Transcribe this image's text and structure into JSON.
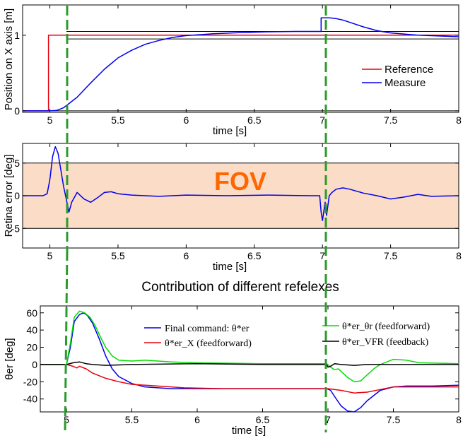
{
  "figure_title": "Contribution of different refelexes",
  "chart_data": [
    {
      "type": "line",
      "xlabel": "time [s]",
      "ylabel": "Position on X axis [m]",
      "xlim": [
        4.8,
        8
      ],
      "ylim": [
        -0.02,
        1.4
      ],
      "xticks": [
        "5",
        "5.5",
        "6",
        "6.5",
        "7",
        "7.5",
        "8"
      ],
      "yticks": [
        "0",
        "1"
      ],
      "legend": {
        "entries": [
          "Reference",
          "Measure"
        ],
        "placement": "right"
      },
      "bounds_lines": [
        0.95,
        1.05
      ],
      "series": [
        {
          "name": "Reference",
          "color": "#e8000b",
          "x": [
            4.8,
            4.99,
            4.99,
            8.0
          ],
          "y": [
            0,
            0,
            1,
            1
          ]
        },
        {
          "name": "Measure",
          "color": "#0000ee",
          "x": [
            4.8,
            5.0,
            5.05,
            5.1,
            5.2,
            5.3,
            5.4,
            5.5,
            5.6,
            5.7,
            5.8,
            5.9,
            6.0,
            6.2,
            6.4,
            6.6,
            6.8,
            6.99,
            6.99,
            7.05,
            7.1,
            7.15,
            7.2,
            7.3,
            7.4,
            7.5,
            7.7,
            8.0
          ],
          "y": [
            0,
            0,
            0.005,
            0.04,
            0.18,
            0.37,
            0.55,
            0.7,
            0.8,
            0.88,
            0.93,
            0.97,
            0.995,
            1.02,
            1.035,
            1.045,
            1.05,
            1.05,
            1.23,
            1.23,
            1.22,
            1.2,
            1.17,
            1.11,
            1.06,
            1.03,
            1.0,
            0.98
          ]
        }
      ]
    },
    {
      "type": "line",
      "xlabel": "time [s]",
      "ylabel": "Retina error [deg]",
      "xlim": [
        4.8,
        8
      ],
      "ylim": [
        -8,
        8
      ],
      "xticks": [
        "5",
        "5.5",
        "6",
        "6.5",
        "7",
        "7.5",
        "8"
      ],
      "yticks": [
        "-5",
        "0",
        "5"
      ],
      "annotation": "FOV",
      "fov_band": [
        -5,
        5
      ],
      "series": [
        {
          "name": "",
          "color": "#0000ee",
          "x": [
            4.8,
            4.95,
            4.98,
            5.0,
            5.02,
            5.04,
            5.06,
            5.08,
            5.1,
            5.12,
            5.14,
            5.16,
            5.2,
            5.25,
            5.3,
            5.35,
            5.4,
            5.45,
            5.5,
            5.6,
            5.8,
            6.0,
            6.3,
            6.6,
            6.9,
            6.98,
            6.99,
            7.0,
            7.02,
            7.03,
            7.05,
            7.07,
            7.1,
            7.15,
            7.2,
            7.3,
            7.4,
            7.5,
            7.6,
            7.7,
            7.8,
            8.0
          ],
          "y": [
            0,
            0,
            0.3,
            2.5,
            6.0,
            7.5,
            6.5,
            4.0,
            1.5,
            -0.5,
            -2.5,
            -1.0,
            0.5,
            -0.5,
            -1.0,
            -0.3,
            0.5,
            0.6,
            0.3,
            0.1,
            -0.1,
            0.1,
            0.0,
            0.1,
            0.0,
            0.0,
            -2.5,
            -3.8,
            -1.0,
            -3.0,
            0.0,
            0.5,
            1.0,
            1.2,
            1.0,
            0.4,
            0.0,
            -0.5,
            -0.2,
            0.2,
            -0.1,
            0.0
          ]
        }
      ]
    },
    {
      "type": "line",
      "title": "Contribution of different refelexes",
      "xlabel": "time [s]",
      "ylabel": "θer [deg]",
      "xlim": [
        4.8,
        8
      ],
      "ylim": [
        -55,
        68
      ],
      "xticks": [
        "5",
        "5.5",
        "6",
        "6.5",
        "7",
        "7.5",
        "8"
      ],
      "yticks": [
        "60",
        "40",
        "20",
        "0",
        "-20",
        "-40"
      ],
      "legend": {
        "entries": [
          "Final command: θ*er",
          "θ*er_X (feedforward)",
          "θ*er_θr (feedforward)",
          "θ*er_VFR (feedback)"
        ],
        "placement": "top"
      },
      "series": [
        {
          "name": "Final command: θ*er",
          "color": "#0000ee",
          "x": [
            4.8,
            5.0,
            5.03,
            5.06,
            5.1,
            5.13,
            5.16,
            5.2,
            5.25,
            5.3,
            5.35,
            5.4,
            5.5,
            5.6,
            5.8,
            6.0,
            6.5,
            6.99,
            7.02,
            7.05,
            7.1,
            7.15,
            7.2,
            7.25,
            7.3,
            7.4,
            7.5,
            7.6,
            7.8,
            8.0
          ],
          "y": [
            0,
            0,
            20,
            50,
            58,
            60,
            57,
            48,
            30,
            10,
            -5,
            -14,
            -22,
            -26,
            -28,
            -28,
            -28,
            -28,
            -30,
            -37,
            -48,
            -54,
            -55,
            -50,
            -42,
            -30,
            -26,
            -25,
            -25,
            -24
          ]
        },
        {
          "name": "θ*er_X (feedforward)",
          "color": "#e8000b",
          "x": [
            4.8,
            5.0,
            5.05,
            5.08,
            5.1,
            5.15,
            5.2,
            5.3,
            5.4,
            5.5,
            5.7,
            5.9,
            6.2,
            6.6,
            7.0,
            7.1,
            7.2,
            7.3,
            7.4,
            7.5,
            7.6,
            7.8,
            8.0
          ],
          "y": [
            0,
            0,
            -2,
            -4,
            -2,
            -5,
            -10,
            -16,
            -20,
            -23,
            -25,
            -27,
            -28,
            -28,
            -28,
            -30,
            -33,
            -32,
            -29,
            -26,
            -26,
            -26,
            -26
          ]
        },
        {
          "name": "θ*er_θr (feedforward)",
          "color": "#00dd00",
          "x": [
            4.8,
            5.0,
            5.03,
            5.06,
            5.1,
            5.14,
            5.18,
            5.22,
            5.26,
            5.3,
            5.35,
            5.4,
            5.5,
            5.6,
            5.7,
            5.8,
            6.0,
            6.5,
            6.99,
            7.02,
            7.05,
            7.08,
            7.1,
            7.15,
            7.2,
            7.25,
            7.3,
            7.35,
            7.4,
            7.5,
            7.6,
            7.7,
            8.0
          ],
          "y": [
            0,
            0,
            25,
            55,
            62,
            60,
            55,
            45,
            32,
            20,
            10,
            5,
            4,
            5,
            4,
            3,
            2,
            1,
            1,
            -3,
            -6,
            -5,
            -8,
            -15,
            -20,
            -19,
            -12,
            -5,
            0,
            6,
            5,
            2,
            1
          ]
        },
        {
          "name": "θ*er_VFR (feedback)",
          "color": "#000000",
          "x": [
            4.8,
            5.0,
            5.05,
            5.1,
            5.15,
            5.2,
            5.3,
            5.5,
            6.0,
            6.5,
            6.99,
            7.0,
            7.02,
            7.05,
            7.1,
            7.2,
            7.3,
            7.5,
            8.0
          ],
          "y": [
            0,
            0,
            2,
            3,
            1,
            0,
            -1,
            0,
            1,
            0,
            0,
            -3,
            -2,
            1,
            0,
            -1,
            0,
            0,
            0
          ]
        }
      ]
    }
  ]
}
